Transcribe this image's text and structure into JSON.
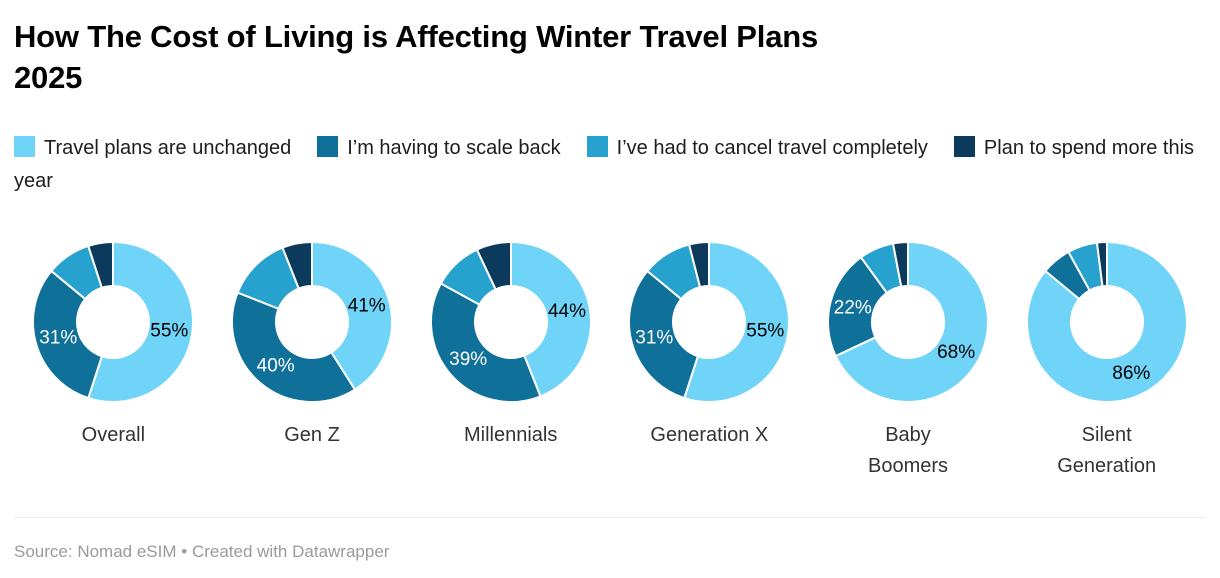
{
  "header": {
    "title_lines": [
      "How The Cost of Living is Affecting Winter Travel Plans",
      "2025"
    ]
  },
  "chart_data": {
    "type": "pie",
    "variant": "multi-donut",
    "title": "How The Cost of Living is Affecting Winter Travel Plans 2025",
    "legend_position": "top",
    "legend": [
      {
        "label": "Travel plans are unchanged",
        "color": "#6FD4F8"
      },
      {
        "label": "I’m having to scale back",
        "color": "#0F7099"
      },
      {
        "label": "I’ve had to cancel travel completely",
        "color": "#27A2CE"
      },
      {
        "label": "Plan to spend more this year",
        "color": "#0C3A5C"
      }
    ],
    "value_suffix": "%",
    "groups": [
      {
        "label": "Overall",
        "values": [
          55,
          31,
          9,
          5
        ],
        "labeled": [
          true,
          true,
          false,
          false
        ]
      },
      {
        "label": "Gen Z",
        "values": [
          41,
          40,
          13,
          6
        ],
        "labeled": [
          true,
          true,
          false,
          false
        ]
      },
      {
        "label": "Millennials",
        "values": [
          44,
          39,
          10,
          7
        ],
        "labeled": [
          true,
          true,
          false,
          false
        ]
      },
      {
        "label": "Generation X",
        "values": [
          55,
          31,
          10,
          4
        ],
        "labeled": [
          true,
          true,
          false,
          false
        ]
      },
      {
        "label": "Baby Boomers",
        "values": [
          68,
          22,
          7,
          3
        ],
        "labeled": [
          true,
          true,
          false,
          false
        ]
      },
      {
        "label": "Silent Generation",
        "values": [
          86,
          6,
          6,
          2
        ],
        "labeled": [
          true,
          false,
          false,
          false
        ]
      }
    ],
    "slice_label_colors": [
      "#000000",
      "#ffffff",
      "#ffffff",
      "#ffffff"
    ]
  },
  "footer": {
    "prefix": "Source:",
    "source": "Nomad eSIM",
    "separator": "•",
    "credit_prefix": "Created with",
    "credit": "Datawrapper"
  }
}
